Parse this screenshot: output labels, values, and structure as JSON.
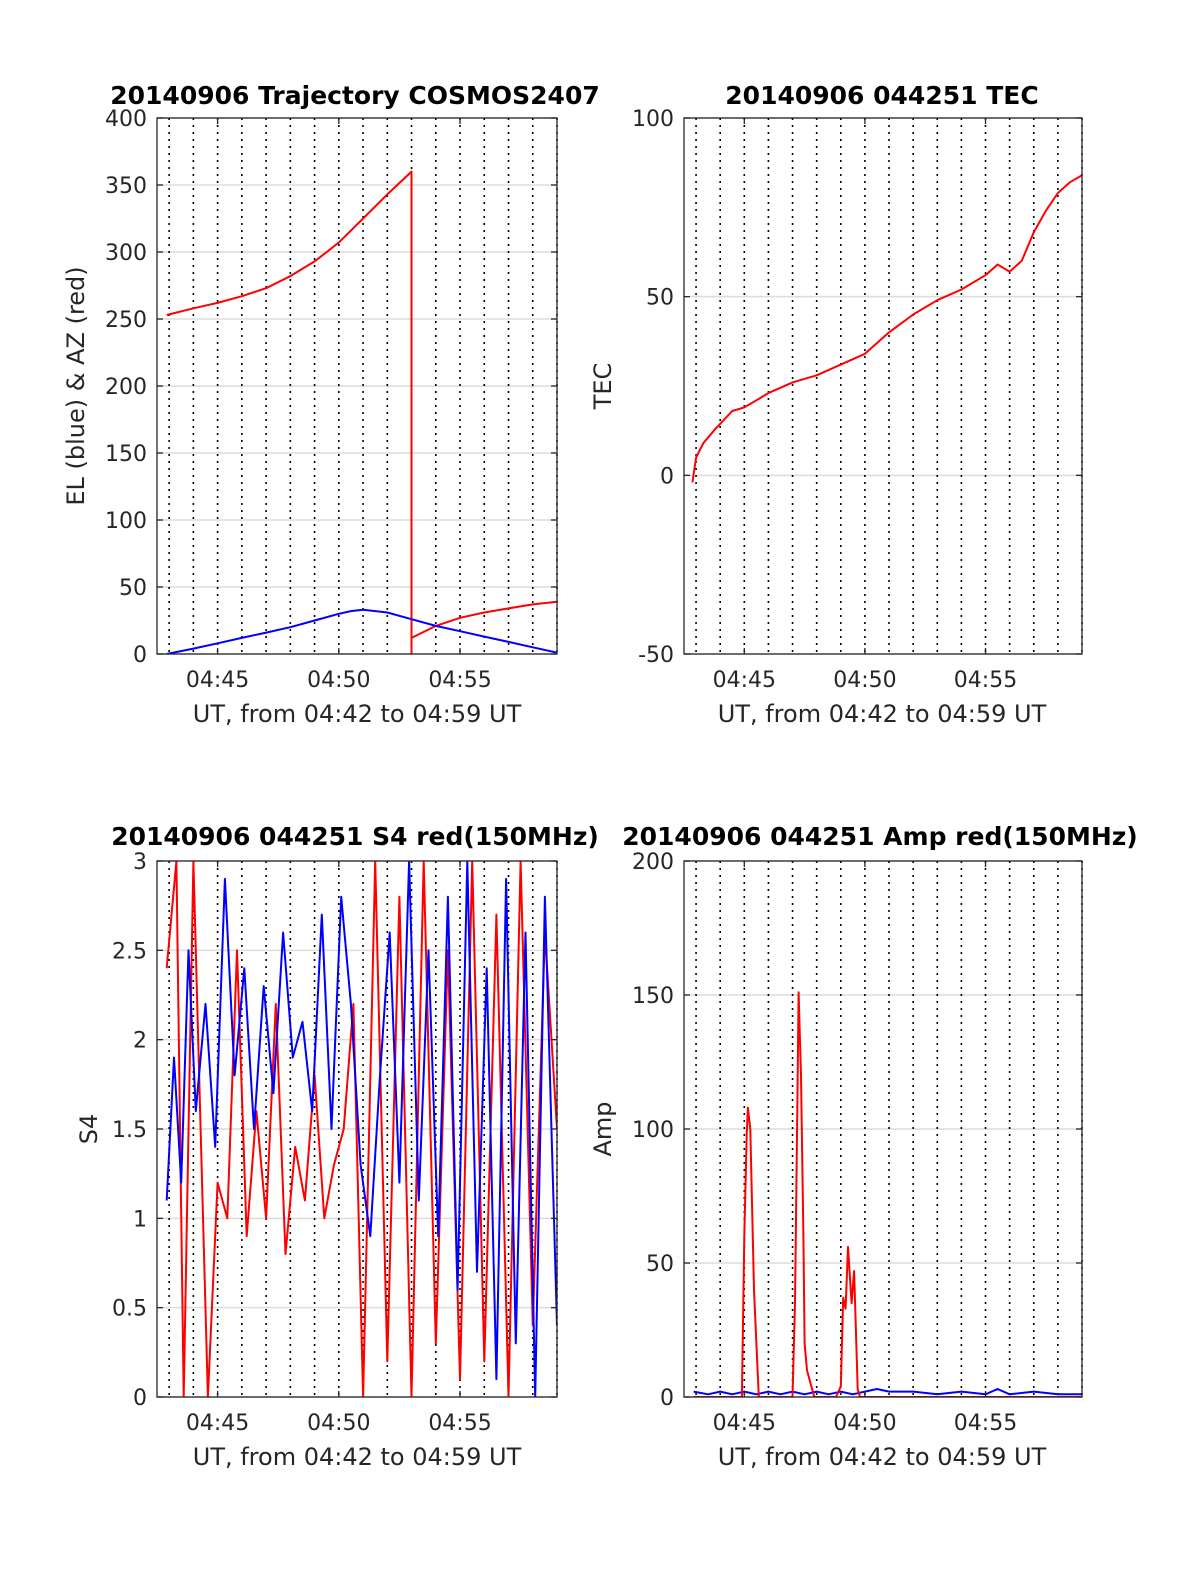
{
  "figure": {
    "background": "#ffffff",
    "series_colors": {
      "red": "#ff0000",
      "blue": "#0000ff"
    }
  },
  "chart_data": [
    {
      "type": "line",
      "title": "20140906 Trajectory COSMOS2407",
      "xlabel": "UT, from 04:42 to 04:59 UT",
      "ylabel": "EL (blue) & AZ (red)",
      "x_unit": "minutes after 04:00 UT",
      "xlim": [
        42.5,
        59
      ],
      "ylim": [
        0,
        400
      ],
      "xticks": [
        45,
        50,
        55
      ],
      "xtick_labels": [
        "04:45",
        "04:50",
        "04:55"
      ],
      "yticks": [
        0,
        50,
        100,
        150,
        200,
        250,
        300,
        350,
        400
      ],
      "ytick_labels": [
        "0",
        "50",
        "100",
        "150",
        "200",
        "250",
        "300",
        "350",
        "400"
      ],
      "grid": true,
      "minute_dotted_lines": true,
      "series": [
        {
          "name": "AZ",
          "color": "#ff0000",
          "x": [
            42.9,
            44,
            45,
            46,
            47,
            48,
            49,
            50,
            51,
            52,
            53.0,
            53.0,
            53.0,
            54,
            55,
            56,
            57,
            58,
            59
          ],
          "y": [
            253,
            258,
            262,
            267,
            273,
            282,
            293,
            307,
            325,
            343,
            360,
            0,
            12,
            21,
            27,
            31,
            34,
            37,
            39
          ]
        },
        {
          "name": "EL",
          "color": "#0000ff",
          "x": [
            42.9,
            44,
            45,
            46,
            47,
            48,
            49,
            50,
            50.5,
            51,
            51.5,
            52,
            53,
            54,
            55,
            56,
            57,
            58,
            59
          ],
          "y": [
            0,
            4,
            8,
            12,
            16,
            20,
            25,
            30,
            32,
            33,
            32,
            31,
            26,
            21,
            17,
            13,
            9,
            5,
            1
          ]
        }
      ]
    },
    {
      "type": "line",
      "title": "20140906 044251 TEC",
      "xlabel": "UT, from 04:42 to 04:59 UT",
      "ylabel": "TEC",
      "x_unit": "minutes after 04:00 UT",
      "xlim": [
        42.5,
        59
      ],
      "ylim": [
        -50,
        100
      ],
      "xticks": [
        45,
        50,
        55
      ],
      "xtick_labels": [
        "04:45",
        "04:50",
        "04:55"
      ],
      "yticks": [
        -50,
        0,
        50,
        100
      ],
      "ytick_labels": [
        "-50",
        "0",
        "50",
        "100"
      ],
      "grid": true,
      "minute_dotted_lines": true,
      "series": [
        {
          "name": "TEC",
          "color": "#ff0000",
          "x": [
            42.85,
            43.0,
            43.3,
            43.8,
            44.5,
            45.0,
            45.5,
            46.0,
            47.0,
            48.0,
            49.0,
            50.0,
            51.0,
            52.0,
            53.0,
            54.0,
            55.0,
            55.5,
            56.0,
            56.5,
            57.0,
            57.5,
            58.0,
            58.5,
            59.0
          ],
          "y": [
            -2,
            5,
            9,
            13,
            18,
            19,
            21,
            23,
            26,
            28,
            31,
            34,
            40,
            45,
            49,
            52,
            56,
            59,
            57,
            60,
            68,
            74,
            79,
            82,
            84
          ]
        }
      ]
    },
    {
      "type": "line",
      "title": "20140906 044251 S4 red(150MHz)",
      "xlabel": "UT, from 04:42 to 04:59 UT",
      "ylabel": "S4",
      "x_unit": "minutes after 04:00 UT",
      "xlim": [
        42.5,
        59
      ],
      "ylim": [
        0,
        3
      ],
      "xticks": [
        45,
        50,
        55
      ],
      "xtick_labels": [
        "04:45",
        "04:50",
        "04:55"
      ],
      "yticks": [
        0,
        0.5,
        1,
        1.5,
        2,
        2.5,
        3
      ],
      "ytick_labels": [
        "0",
        "0.5",
        "1",
        "1.5",
        "2",
        "2.5",
        "3"
      ],
      "grid": true,
      "minute_dotted_lines": true,
      "series": [
        {
          "name": "S4 red (150MHz)",
          "color": "#ff0000",
          "x": [
            42.9,
            43.3,
            43.6,
            44.0,
            44.3,
            44.6,
            45.0,
            45.4,
            45.8,
            46.2,
            46.6,
            47.0,
            47.4,
            47.8,
            48.2,
            48.6,
            49.0,
            49.4,
            49.8,
            50.2,
            50.6,
            51.0,
            51.5,
            52.0,
            52.5,
            53.0,
            53.5,
            54.0,
            54.5,
            55.0,
            55.5,
            56.0,
            56.5,
            57.0,
            57.5,
            58.0,
            58.5,
            59.0
          ],
          "y": [
            2.4,
            3.0,
            0.0,
            3.0,
            1.5,
            0.0,
            1.2,
            1.0,
            2.5,
            0.9,
            1.6,
            1.0,
            2.2,
            0.8,
            1.4,
            1.1,
            1.8,
            1.0,
            1.3,
            1.5,
            2.2,
            0.0,
            3.0,
            0.2,
            2.8,
            0.0,
            3.0,
            0.3,
            2.5,
            0.1,
            3.0,
            0.2,
            2.7,
            0.0,
            3.0,
            0.4,
            2.6,
            1.5
          ]
        },
        {
          "name": "S4 blue",
          "color": "#0000ff",
          "x": [
            42.9,
            43.2,
            43.5,
            43.8,
            44.1,
            44.5,
            44.9,
            45.3,
            45.7,
            46.1,
            46.5,
            46.9,
            47.3,
            47.7,
            48.1,
            48.5,
            48.9,
            49.3,
            49.7,
            50.1,
            50.5,
            50.9,
            51.3,
            51.7,
            52.1,
            52.5,
            52.9,
            53.3,
            53.7,
            54.1,
            54.5,
            54.9,
            55.3,
            55.7,
            56.1,
            56.5,
            56.9,
            57.3,
            57.7,
            58.1,
            58.5,
            59.0
          ],
          "y": [
            1.1,
            1.9,
            1.2,
            2.5,
            1.6,
            2.2,
            1.4,
            2.9,
            1.8,
            2.4,
            1.5,
            2.3,
            1.7,
            2.6,
            1.9,
            2.1,
            1.6,
            2.7,
            1.5,
            2.8,
            2.2,
            1.3,
            0.9,
            1.8,
            2.6,
            1.2,
            3.0,
            1.1,
            2.5,
            0.9,
            2.8,
            0.6,
            3.0,
            0.7,
            2.4,
            0.1,
            2.9,
            0.3,
            2.6,
            0.0,
            2.8,
            0.4
          ]
        }
      ]
    },
    {
      "type": "line",
      "title": "20140906 044251 Amp red(150MHz)",
      "xlabel": "UT, from 04:42 to 04:59 UT",
      "ylabel": "Amp",
      "x_unit": "minutes after 04:00 UT",
      "xlim": [
        42.5,
        59
      ],
      "ylim": [
        0,
        200
      ],
      "xticks": [
        45,
        50,
        55
      ],
      "xtick_labels": [
        "04:45",
        "04:50",
        "04:55"
      ],
      "yticks": [
        0,
        50,
        100,
        150,
        200
      ],
      "ytick_labels": [
        "0",
        "50",
        "100",
        "150",
        "200"
      ],
      "grid": true,
      "minute_dotted_lines": true,
      "series": [
        {
          "name": "Amp blue",
          "color": "#0000ff",
          "x": [
            42.9,
            43.5,
            44.0,
            44.5,
            45.0,
            45.5,
            46.0,
            46.5,
            47.0,
            47.5,
            48.0,
            48.5,
            49.0,
            49.5,
            50.0,
            50.5,
            51.0,
            52.0,
            53.0,
            54.0,
            55.0,
            55.5,
            56.0,
            57.0,
            58.0,
            59.0
          ],
          "y": [
            2,
            1,
            2,
            1,
            2,
            1,
            2,
            1,
            2,
            1,
            2,
            1,
            2,
            1,
            2,
            3,
            2,
            2,
            1,
            2,
            1,
            3,
            1,
            2,
            1,
            1
          ]
        },
        {
          "name": "Amp red (150MHz)",
          "color": "#ff0000",
          "x": [
            42.9,
            44.9,
            45.0,
            45.1,
            45.15,
            45.25,
            45.4,
            45.6,
            47.0,
            47.1,
            47.2,
            47.25,
            47.35,
            47.45,
            47.5,
            47.6,
            47.75,
            47.9,
            48.8,
            49.0,
            49.1,
            49.2,
            49.3,
            49.45,
            49.55,
            49.7,
            49.8,
            50.0,
            59.0
          ],
          "y": [
            0,
            0,
            60,
            98,
            108,
            100,
            40,
            0,
            0,
            35,
            110,
            151,
            120,
            60,
            20,
            10,
            5,
            0,
            0,
            4,
            37,
            33,
            56,
            35,
            47,
            3,
            0,
            0,
            0
          ]
        }
      ]
    }
  ]
}
